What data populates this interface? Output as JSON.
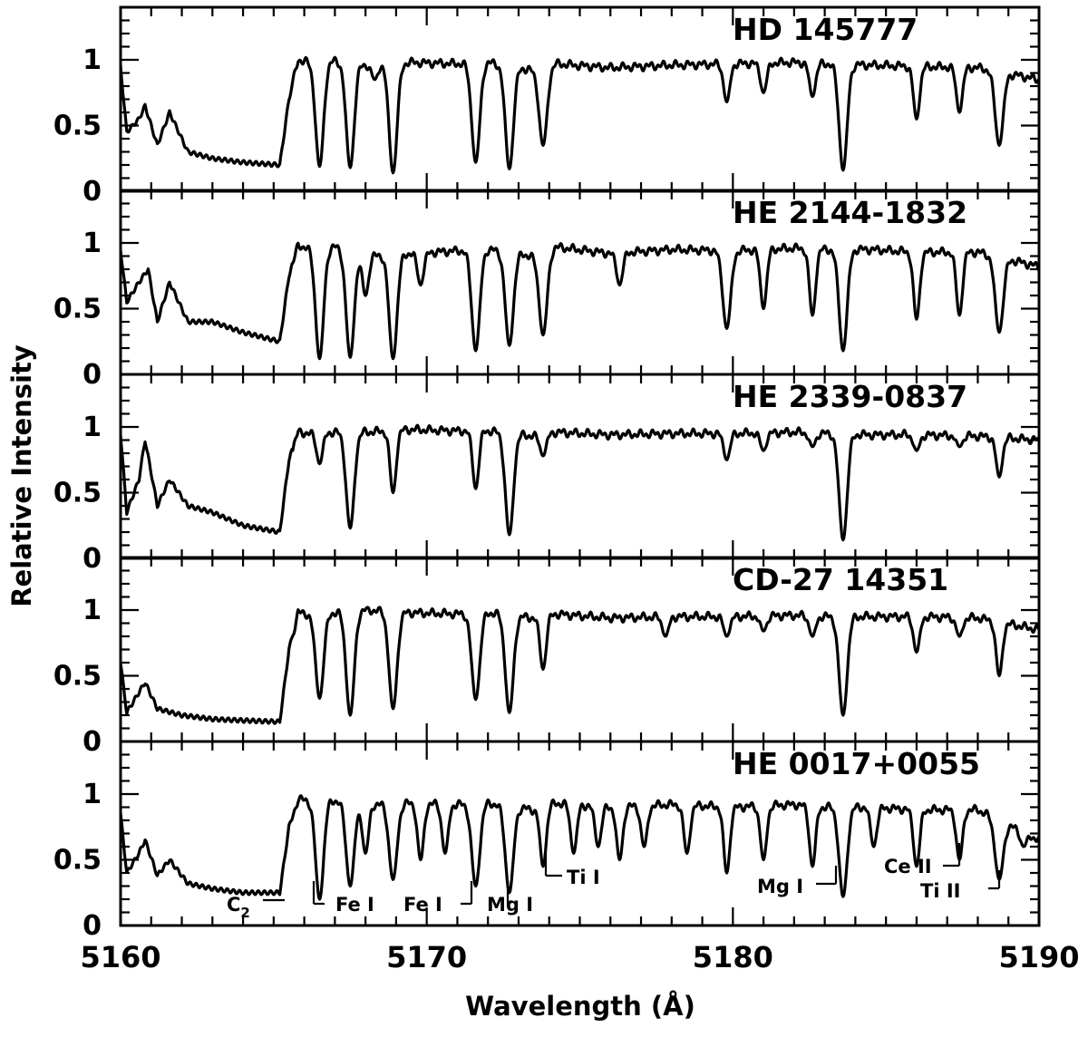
{
  "chart_data": {
    "type": "line",
    "xlabel": "Wavelength (Å)",
    "ylabel": "Relative Intensity",
    "xlim": [
      5160,
      5190
    ],
    "ylim": [
      0,
      1.4
    ],
    "x_ticks": [
      5160,
      5170,
      5180,
      5190
    ],
    "x_tick_labels": [
      "5160",
      "5170",
      "5180",
      "5190"
    ],
    "y_ticks": [
      0,
      0.5,
      1
    ],
    "y_tick_labels": [
      "0",
      "0.5",
      "1"
    ],
    "grid": false,
    "series": [
      {
        "name": "HD 145777",
        "continuum": [
          [
            5160.0,
            0.95
          ],
          [
            5160.2,
            0.45
          ],
          [
            5160.6,
            0.55
          ],
          [
            5160.8,
            0.65
          ],
          [
            5161.2,
            0.35
          ],
          [
            5161.6,
            0.6
          ],
          [
            5162.2,
            0.3
          ],
          [
            5163.0,
            0.25
          ],
          [
            5164.0,
            0.22
          ],
          [
            5165.2,
            0.2
          ],
          [
            5165.5,
            0.7
          ],
          [
            5165.8,
            1.0
          ],
          [
            5166.2,
            0.98
          ],
          [
            5167.0,
            0.99
          ],
          [
            5168.0,
            0.96
          ],
          [
            5169.5,
            0.98
          ],
          [
            5171.0,
            0.97
          ],
          [
            5172.0,
            0.98
          ],
          [
            5173.5,
            0.92
          ],
          [
            5174.2,
            0.97
          ],
          [
            5176.0,
            0.94
          ],
          [
            5178.0,
            0.96
          ],
          [
            5180.0,
            0.97
          ],
          [
            5182.0,
            0.98
          ],
          [
            5183.0,
            0.97
          ],
          [
            5184.5,
            0.96
          ],
          [
            5186.0,
            0.95
          ],
          [
            5188.0,
            0.94
          ],
          [
            5190.0,
            0.85
          ]
        ],
        "lines": [
          [
            5166.5,
            0.19
          ],
          [
            5167.5,
            0.18
          ],
          [
            5168.3,
            0.85
          ],
          [
            5168.9,
            0.14
          ],
          [
            5171.6,
            0.22
          ],
          [
            5172.7,
            0.17
          ],
          [
            5173.8,
            0.35
          ],
          [
            5179.8,
            0.68
          ],
          [
            5181.0,
            0.75
          ],
          [
            5182.6,
            0.72
          ],
          [
            5183.6,
            0.16
          ],
          [
            5186.0,
            0.55
          ],
          [
            5187.4,
            0.6
          ],
          [
            5188.7,
            0.35
          ]
        ]
      },
      {
        "name": "HE 2144-1832",
        "continuum": [
          [
            5160.0,
            0.95
          ],
          [
            5160.2,
            0.55
          ],
          [
            5160.6,
            0.7
          ],
          [
            5160.9,
            0.8
          ],
          [
            5161.2,
            0.4
          ],
          [
            5161.6,
            0.7
          ],
          [
            5162.2,
            0.4
          ],
          [
            5163.0,
            0.4
          ],
          [
            5164.0,
            0.32
          ],
          [
            5165.2,
            0.25
          ],
          [
            5165.5,
            0.75
          ],
          [
            5165.8,
            0.98
          ],
          [
            5166.2,
            0.96
          ],
          [
            5167.0,
            0.97
          ],
          [
            5168.0,
            0.9
          ],
          [
            5169.5,
            0.92
          ],
          [
            5171.0,
            0.94
          ],
          [
            5172.0,
            0.95
          ],
          [
            5173.5,
            0.9
          ],
          [
            5174.2,
            0.97
          ],
          [
            5176.0,
            0.92
          ],
          [
            5178.0,
            0.95
          ],
          [
            5180.0,
            0.94
          ],
          [
            5182.0,
            0.96
          ],
          [
            5183.0,
            0.95
          ],
          [
            5184.5,
            0.95
          ],
          [
            5186.0,
            0.93
          ],
          [
            5188.0,
            0.93
          ],
          [
            5190.0,
            0.82
          ]
        ],
        "lines": [
          [
            5166.5,
            0.12
          ],
          [
            5167.5,
            0.13
          ],
          [
            5168.0,
            0.6
          ],
          [
            5168.9,
            0.12
          ],
          [
            5169.8,
            0.68
          ],
          [
            5171.6,
            0.18
          ],
          [
            5172.7,
            0.22
          ],
          [
            5173.8,
            0.3
          ],
          [
            5176.3,
            0.68
          ],
          [
            5179.8,
            0.35
          ],
          [
            5181.0,
            0.5
          ],
          [
            5182.6,
            0.45
          ],
          [
            5183.6,
            0.18
          ],
          [
            5186.0,
            0.42
          ],
          [
            5187.4,
            0.45
          ],
          [
            5188.7,
            0.32
          ]
        ]
      },
      {
        "name": "HE 2339-0837",
        "continuum": [
          [
            5160.0,
            0.95
          ],
          [
            5160.2,
            0.35
          ],
          [
            5160.6,
            0.6
          ],
          [
            5160.8,
            0.9
          ],
          [
            5161.2,
            0.4
          ],
          [
            5161.6,
            0.6
          ],
          [
            5162.2,
            0.4
          ],
          [
            5163.0,
            0.35
          ],
          [
            5164.0,
            0.25
          ],
          [
            5165.2,
            0.2
          ],
          [
            5165.5,
            0.75
          ],
          [
            5165.8,
            0.96
          ],
          [
            5166.2,
            0.95
          ],
          [
            5167.0,
            0.96
          ],
          [
            5168.0,
            0.96
          ],
          [
            5169.5,
            0.98
          ],
          [
            5171.0,
            0.97
          ],
          [
            5172.0,
            0.97
          ],
          [
            5173.5,
            0.93
          ],
          [
            5174.2,
            0.96
          ],
          [
            5176.0,
            0.94
          ],
          [
            5178.0,
            0.95
          ],
          [
            5180.0,
            0.95
          ],
          [
            5182.0,
            0.96
          ],
          [
            5183.0,
            0.95
          ],
          [
            5184.5,
            0.94
          ],
          [
            5186.0,
            0.94
          ],
          [
            5188.0,
            0.93
          ],
          [
            5190.0,
            0.9
          ]
        ],
        "lines": [
          [
            5166.5,
            0.72
          ],
          [
            5167.5,
            0.23
          ],
          [
            5168.9,
            0.5
          ],
          [
            5171.6,
            0.53
          ],
          [
            5172.7,
            0.18
          ],
          [
            5173.8,
            0.78
          ],
          [
            5179.8,
            0.75
          ],
          [
            5181.0,
            0.82
          ],
          [
            5182.6,
            0.85
          ],
          [
            5183.6,
            0.14
          ],
          [
            5186.0,
            0.82
          ],
          [
            5187.4,
            0.85
          ],
          [
            5188.7,
            0.62
          ]
        ]
      },
      {
        "name": "CD-27 14351",
        "continuum": [
          [
            5160.0,
            0.6
          ],
          [
            5160.2,
            0.22
          ],
          [
            5160.8,
            0.45
          ],
          [
            5161.2,
            0.25
          ],
          [
            5162.0,
            0.2
          ],
          [
            5163.0,
            0.17
          ],
          [
            5164.0,
            0.16
          ],
          [
            5165.2,
            0.15
          ],
          [
            5165.5,
            0.7
          ],
          [
            5165.8,
            0.98
          ],
          [
            5166.2,
            0.97
          ],
          [
            5167.0,
            0.98
          ],
          [
            5168.0,
            1.0
          ],
          [
            5169.5,
            0.98
          ],
          [
            5171.0,
            0.97
          ],
          [
            5172.0,
            0.98
          ],
          [
            5173.5,
            0.94
          ],
          [
            5174.2,
            0.97
          ],
          [
            5176.0,
            0.94
          ],
          [
            5178.0,
            0.95
          ],
          [
            5180.0,
            0.95
          ],
          [
            5182.0,
            0.96
          ],
          [
            5183.0,
            0.95
          ],
          [
            5184.5,
            0.95
          ],
          [
            5186.0,
            0.95
          ],
          [
            5188.0,
            0.94
          ],
          [
            5190.0,
            0.85
          ]
        ],
        "lines": [
          [
            5166.5,
            0.33
          ],
          [
            5167.5,
            0.2
          ],
          [
            5168.9,
            0.25
          ],
          [
            5171.6,
            0.32
          ],
          [
            5172.7,
            0.22
          ],
          [
            5173.8,
            0.55
          ],
          [
            5177.8,
            0.8
          ],
          [
            5179.8,
            0.8
          ],
          [
            5181.0,
            0.84
          ],
          [
            5182.6,
            0.8
          ],
          [
            5183.6,
            0.2
          ],
          [
            5186.0,
            0.68
          ],
          [
            5187.4,
            0.8
          ],
          [
            5188.7,
            0.5
          ]
        ]
      },
      {
        "name": "HE 0017+0055",
        "continuum": [
          [
            5160.0,
            0.85
          ],
          [
            5160.2,
            0.4
          ],
          [
            5160.6,
            0.55
          ],
          [
            5160.8,
            0.65
          ],
          [
            5161.2,
            0.38
          ],
          [
            5161.6,
            0.5
          ],
          [
            5162.2,
            0.32
          ],
          [
            5163.0,
            0.28
          ],
          [
            5164.0,
            0.25
          ],
          [
            5165.2,
            0.25
          ],
          [
            5165.5,
            0.75
          ],
          [
            5165.8,
            0.96
          ],
          [
            5166.2,
            0.95
          ],
          [
            5167.0,
            0.95
          ],
          [
            5168.0,
            0.92
          ],
          [
            5169.5,
            0.93
          ],
          [
            5171.0,
            0.92
          ],
          [
            5172.0,
            0.93
          ],
          [
            5173.5,
            0.88
          ],
          [
            5174.2,
            0.93
          ],
          [
            5176.0,
            0.9
          ],
          [
            5178.0,
            0.92
          ],
          [
            5180.0,
            0.9
          ],
          [
            5182.0,
            0.92
          ],
          [
            5183.0,
            0.9
          ],
          [
            5184.5,
            0.9
          ],
          [
            5186.0,
            0.88
          ],
          [
            5188.0,
            0.88
          ],
          [
            5190.0,
            0.65
          ]
        ],
        "lines": [
          [
            5166.5,
            0.2
          ],
          [
            5167.5,
            0.3
          ],
          [
            5168.0,
            0.55
          ],
          [
            5168.9,
            0.35
          ],
          [
            5169.8,
            0.5
          ],
          [
            5170.6,
            0.55
          ],
          [
            5171.6,
            0.3
          ],
          [
            5172.7,
            0.25
          ],
          [
            5173.8,
            0.45
          ],
          [
            5174.8,
            0.55
          ],
          [
            5175.6,
            0.6
          ],
          [
            5176.3,
            0.5
          ],
          [
            5177.1,
            0.6
          ],
          [
            5178.5,
            0.55
          ],
          [
            5179.8,
            0.4
          ],
          [
            5181.0,
            0.5
          ],
          [
            5182.6,
            0.45
          ],
          [
            5183.6,
            0.22
          ],
          [
            5184.6,
            0.6
          ],
          [
            5186.0,
            0.45
          ],
          [
            5187.4,
            0.5
          ],
          [
            5188.7,
            0.35
          ],
          [
            5189.5,
            0.6
          ]
        ]
      }
    ],
    "line_ids": [
      {
        "label": "C",
        "subscript": "2",
        "x": 5165.0
      },
      {
        "label": "Fe I",
        "x": 5166.3
      },
      {
        "label": "Fe I",
        "x": 5171.6
      },
      {
        "label": "Mg I",
        "x": 5172.7
      },
      {
        "label": "Ti I",
        "x": 5173.8
      },
      {
        "label": "Mg I",
        "x": 5183.6
      },
      {
        "label": "Ce II",
        "x": 5187.4
      },
      {
        "label": "Ti II",
        "x": 5188.8
      }
    ]
  }
}
